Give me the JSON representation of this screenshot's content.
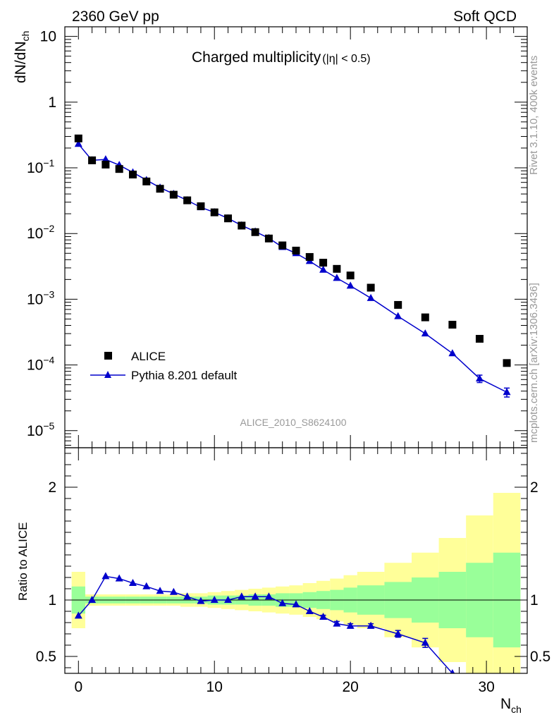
{
  "header": {
    "left": "2360 GeV pp",
    "right": "Soft QCD"
  },
  "side_text": {
    "rivet": "Rivet 3.1.10,  400k events",
    "mcplots": "mcplots.cern.ch [arXiv:1306.3436]"
  },
  "chart_data": [
    {
      "type": "scatter",
      "title": "Charged multiplicity",
      "title_suffix": "(|η| < 0.5)",
      "ylabel": "dN/dN",
      "ylabel_sub": "ch",
      "yscale": "log",
      "ylim": [
        5.5e-06,
        14
      ],
      "xlim": [
        -1,
        33
      ],
      "yticks": [
        {
          "v": 10,
          "label": "10",
          "exp": ""
        },
        {
          "v": 1,
          "label": "1",
          "exp": ""
        },
        {
          "v": 0.1,
          "label": "10",
          "exp": "−1"
        },
        {
          "v": 0.01,
          "label": "10",
          "exp": "−2"
        },
        {
          "v": 0.001,
          "label": "10",
          "exp": "−3"
        },
        {
          "v": 0.0001,
          "label": "10",
          "exp": "−4"
        },
        {
          "v": 1e-05,
          "label": "10",
          "exp": "−5"
        }
      ],
      "analysis_label": "ALICE_2010_S8624100",
      "legend": {
        "placement": "lower-left",
        "data_label": "ALICE",
        "mc_label": "Pythia 8.201 default"
      },
      "series": [
        {
          "name": "ALICE",
          "marker": "square",
          "color": "#000000",
          "x": [
            0,
            1,
            2,
            3,
            4,
            5,
            6,
            7,
            8,
            9,
            10,
            11,
            12,
            13,
            14,
            15,
            16,
            17,
            18,
            19,
            20,
            21.5,
            23.5,
            25.5,
            27.5,
            29.5,
            31.5
          ],
          "y": [
            0.28,
            0.13,
            0.112,
            0.096,
            0.079,
            0.062,
            0.048,
            0.039,
            0.032,
            0.026,
            0.021,
            0.017,
            0.0132,
            0.0105,
            0.0084,
            0.0066,
            0.0055,
            0.0044,
            0.0036,
            0.0029,
            0.0023,
            0.0015,
            0.00082,
            0.00053,
            0.00041,
            0.00025,
            0.000107
          ]
        },
        {
          "name": "Pythia 8.201 default",
          "marker": "triangle",
          "color": "#0000cc",
          "x": [
            0,
            1,
            2,
            3,
            4,
            5,
            6,
            7,
            8,
            9,
            10,
            11,
            12,
            13,
            14,
            15,
            16,
            17,
            18,
            19,
            20,
            21.5,
            23.5,
            25.5,
            27.5,
            29.5,
            31.5
          ],
          "y": [
            0.23,
            0.13,
            0.134,
            0.11,
            0.085,
            0.065,
            0.05,
            0.04,
            0.032,
            0.025,
            0.021,
            0.017,
            0.0133,
            0.0107,
            0.0085,
            0.0062,
            0.005,
            0.0038,
            0.0028,
            0.0021,
            0.0016,
            0.00104,
            0.00055,
            0.0003,
            0.00015,
            6.2e-05,
            3.85e-05
          ],
          "yerr": [
            0,
            0,
            0,
            0,
            0,
            0,
            0,
            0,
            0,
            0,
            0,
            0,
            0,
            0,
            0,
            0,
            0,
            0,
            0,
            0,
            0,
            0,
            0,
            0,
            0,
            8e-06,
            6e-06
          ]
        }
      ]
    },
    {
      "type": "line",
      "ylabel": "Ratio to ALICE",
      "xlabel": "N",
      "xlabel_sub": "ch",
      "xlim": [
        -1,
        33
      ],
      "ylim": [
        0.35,
        2.35
      ],
      "yticks": [
        0.5,
        1,
        2
      ],
      "xticks": [
        0,
        10,
        20,
        30
      ],
      "bands": {
        "edges": [
          -0.5,
          0.5,
          1.5,
          2.5,
          3.5,
          4.5,
          5.5,
          6.5,
          7.5,
          8.5,
          9.5,
          10.5,
          11.5,
          12.5,
          13.5,
          14.5,
          15.5,
          16.5,
          17.5,
          18.5,
          19.5,
          20.5,
          22.5,
          24.5,
          26.5,
          28.5,
          30.5,
          32.5
        ],
        "inner": [
          0.12,
          0.03,
          0.03,
          0.03,
          0.03,
          0.03,
          0.03,
          0.03,
          0.03,
          0.03,
          0.04,
          0.04,
          0.04,
          0.05,
          0.05,
          0.06,
          0.06,
          0.07,
          0.08,
          0.09,
          0.11,
          0.13,
          0.16,
          0.2,
          0.25,
          0.33,
          0.42
        ],
        "outer": [
          0.25,
          0.05,
          0.05,
          0.05,
          0.05,
          0.05,
          0.05,
          0.05,
          0.06,
          0.06,
          0.07,
          0.08,
          0.09,
          0.1,
          0.11,
          0.12,
          0.13,
          0.15,
          0.17,
          0.19,
          0.22,
          0.25,
          0.33,
          0.42,
          0.55,
          0.75,
          0.95
        ],
        "inner_color": "#99ff99",
        "outer_color": "#ffff99"
      },
      "series": [
        {
          "name": "Pythia 8.201 default",
          "color": "#0000cc",
          "x": [
            0,
            1,
            2,
            3,
            4,
            5,
            6,
            7,
            8,
            9,
            10,
            11,
            12,
            13,
            14,
            15,
            16,
            17,
            18,
            19,
            20,
            21.5,
            23.5,
            25.5,
            27.5
          ],
          "y": [
            0.86,
            1.0,
            1.21,
            1.19,
            1.15,
            1.12,
            1.08,
            1.07,
            1.03,
            0.99,
            1.0,
            1.0,
            1.03,
            1.03,
            1.03,
            0.97,
            0.96,
            0.9,
            0.85,
            0.79,
            0.77,
            0.77,
            0.7,
            0.62,
            0.35
          ],
          "yerr": [
            0,
            0,
            0,
            0,
            0,
            0,
            0,
            0,
            0,
            0,
            0,
            0,
            0,
            0,
            0,
            0,
            0,
            0,
            0.015,
            0.02,
            0.02,
            0.02,
            0.03,
            0.04,
            0
          ]
        }
      ]
    }
  ]
}
